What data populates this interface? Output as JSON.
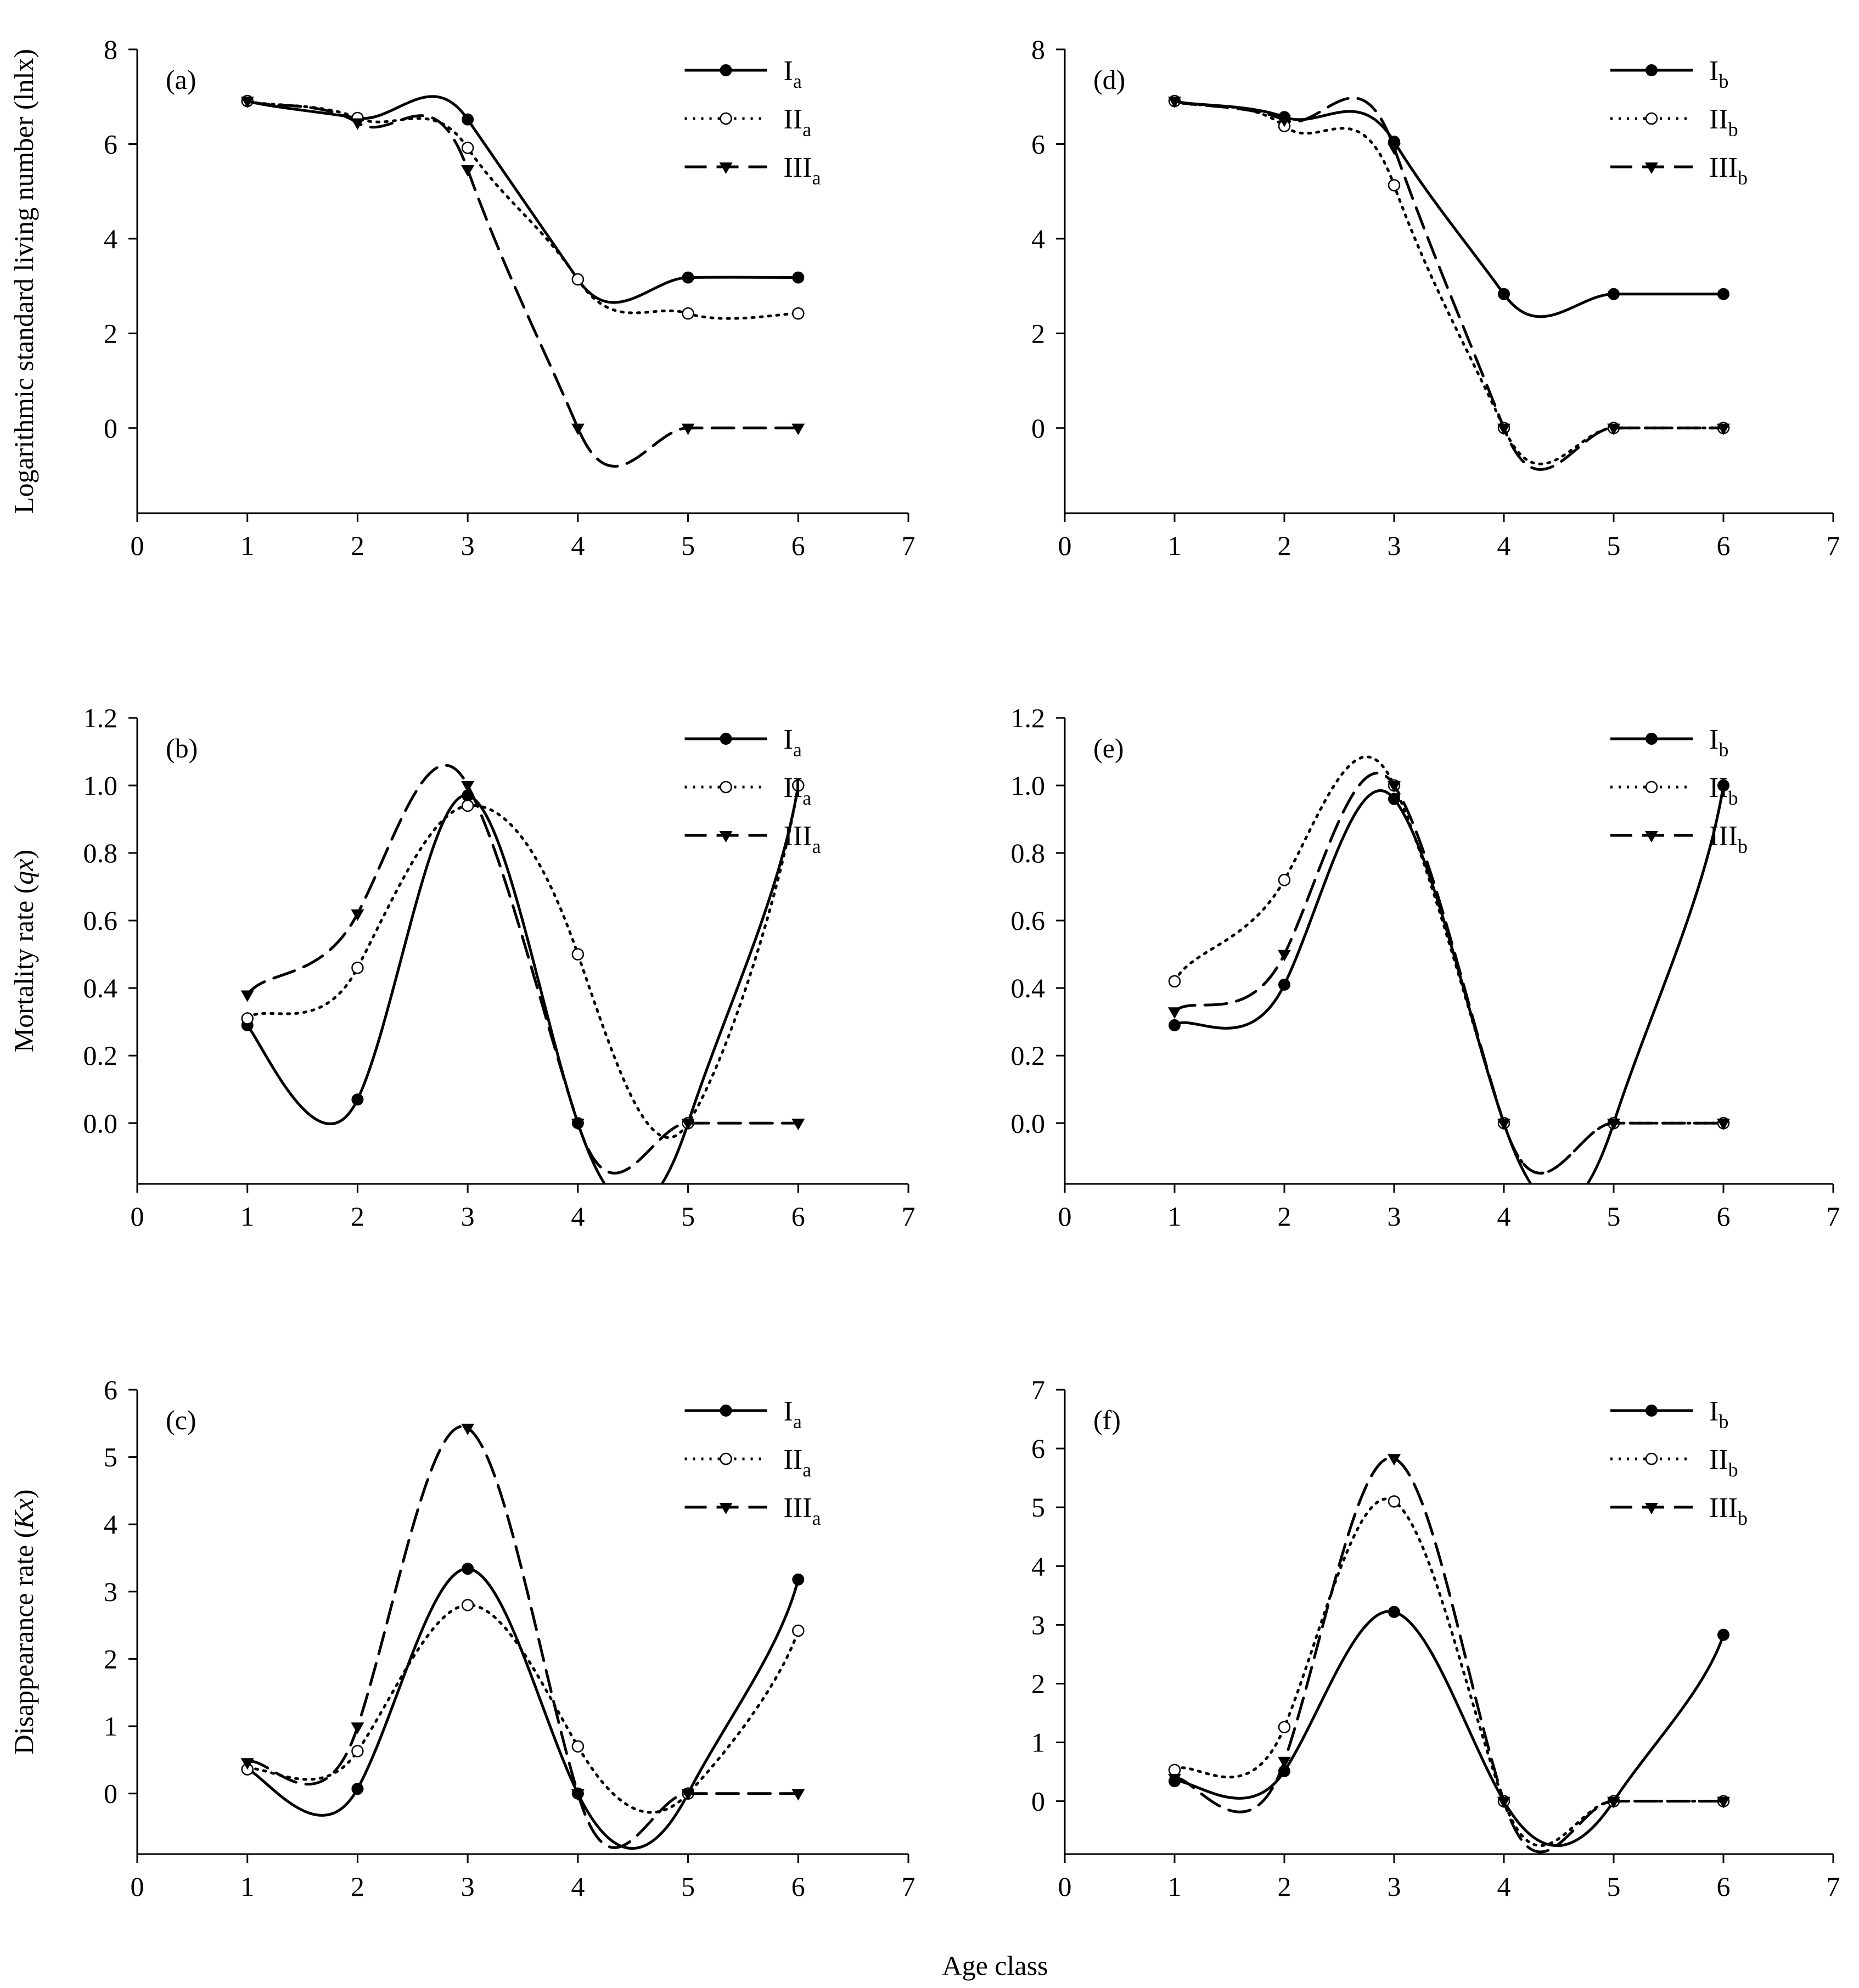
{
  "figure": {
    "xlabel": "Age class"
  },
  "chart_data": [
    {
      "panel": "(a)",
      "type": "line",
      "ylabel": "Logarithmic standard living number (lnlx)",
      "xlabel": "",
      "xlim": [
        0,
        7
      ],
      "ylim": [
        -1.8,
        8
      ],
      "xticks": [
        0,
        1,
        2,
        3,
        4,
        5,
        6,
        7
      ],
      "yticks": [
        0,
        2,
        4,
        6,
        8
      ],
      "ytick_labels": [
        "0",
        "2",
        "4",
        "6",
        "8"
      ],
      "legend_position": "top-right",
      "x": [
        1,
        2,
        3,
        4,
        5,
        6
      ],
      "series": [
        {
          "name": "I",
          "sub": "a",
          "style": "solid",
          "marker": "filled-circle",
          "values": [
            6.91,
            6.55,
            6.52,
            3.14,
            3.18,
            3.18
          ]
        },
        {
          "name": "II",
          "sub": "a",
          "style": "dotted",
          "marker": "open-circle",
          "values": [
            6.91,
            6.55,
            5.92,
            3.14,
            2.42,
            2.42
          ]
        },
        {
          "name": "III",
          "sub": "a",
          "style": "dashed",
          "marker": "triangle-down",
          "values": [
            6.91,
            6.45,
            5.46,
            0.0,
            0.0,
            0.0
          ]
        }
      ]
    },
    {
      "panel": "(b)",
      "type": "line",
      "ylabel": "Mortality rate (qx)",
      "xlabel": "",
      "xlim": [
        0,
        7
      ],
      "ylim": [
        -0.18,
        1.2
      ],
      "xticks": [
        0,
        1,
        2,
        3,
        4,
        5,
        6,
        7
      ],
      "yticks": [
        0.0,
        0.2,
        0.4,
        0.6,
        0.8,
        1.0,
        1.2
      ],
      "ytick_labels": [
        "0.0",
        "0.2",
        "0.4",
        "0.6",
        "0.8",
        "1.0",
        "1.2"
      ],
      "legend_position": "top-right",
      "x": [
        1,
        2,
        3,
        4,
        5,
        6
      ],
      "series": [
        {
          "name": "I",
          "sub": "a",
          "style": "solid",
          "marker": "filled-circle",
          "values": [
            0.29,
            0.07,
            0.97,
            0.0,
            0.0,
            1.0
          ]
        },
        {
          "name": "II",
          "sub": "a",
          "style": "dotted",
          "marker": "open-circle",
          "values": [
            0.31,
            0.46,
            0.94,
            0.5,
            0.0,
            1.0
          ]
        },
        {
          "name": "III",
          "sub": "a",
          "style": "dashed",
          "marker": "triangle-down",
          "values": [
            0.38,
            0.62,
            1.0,
            0.0,
            0.0,
            0.0
          ]
        }
      ]
    },
    {
      "panel": "(c)",
      "type": "line",
      "ylabel": "Disappearance rate (Kx)",
      "xlabel": "",
      "xlim": [
        0,
        7
      ],
      "ylim": [
        -0.9,
        6
      ],
      "xticks": [
        0,
        1,
        2,
        3,
        4,
        5,
        6,
        7
      ],
      "yticks": [
        0,
        1,
        2,
        3,
        4,
        5,
        6
      ],
      "ytick_labels": [
        "0",
        "1",
        "2",
        "3",
        "4",
        "5",
        "6"
      ],
      "legend_position": "top-right",
      "x": [
        1,
        2,
        3,
        4,
        5,
        6
      ],
      "series": [
        {
          "name": "I",
          "sub": "a",
          "style": "solid",
          "marker": "filled-circle",
          "values": [
            0.36,
            0.07,
            3.34,
            0.0,
            0.0,
            3.18
          ]
        },
        {
          "name": "II",
          "sub": "a",
          "style": "dotted",
          "marker": "open-circle",
          "values": [
            0.36,
            0.63,
            2.8,
            0.7,
            0.0,
            2.42
          ]
        },
        {
          "name": "III",
          "sub": "a",
          "style": "dashed",
          "marker": "triangle-down",
          "values": [
            0.46,
            0.99,
            5.43,
            0.0,
            0.0,
            0.0
          ]
        }
      ]
    },
    {
      "panel": "(d)",
      "type": "line",
      "ylabel": "",
      "xlabel": "",
      "xlim": [
        0,
        7
      ],
      "ylim": [
        -1.8,
        8
      ],
      "xticks": [
        0,
        1,
        2,
        3,
        4,
        5,
        6,
        7
      ],
      "yticks": [
        0,
        2,
        4,
        6,
        8
      ],
      "ytick_labels": [
        "0",
        "2",
        "4",
        "6",
        "8"
      ],
      "legend_position": "top-right",
      "x": [
        1,
        2,
        3,
        4,
        5,
        6
      ],
      "series": [
        {
          "name": "I",
          "sub": "b",
          "style": "solid",
          "marker": "filled-circle",
          "values": [
            6.91,
            6.57,
            6.05,
            2.83,
            2.83,
            2.83
          ]
        },
        {
          "name": "II",
          "sub": "b",
          "style": "dotted",
          "marker": "open-circle",
          "values": [
            6.91,
            6.38,
            5.13,
            0.0,
            0.0,
            0.0
          ]
        },
        {
          "name": "III",
          "sub": "b",
          "style": "dashed",
          "marker": "triangle-down",
          "values": [
            6.91,
            6.51,
            5.92,
            0.0,
            0.0,
            0.0
          ]
        }
      ]
    },
    {
      "panel": "(e)",
      "type": "line",
      "ylabel": "",
      "xlabel": "",
      "xlim": [
        0,
        7
      ],
      "ylim": [
        -0.18,
        1.2
      ],
      "xticks": [
        0,
        1,
        2,
        3,
        4,
        5,
        6,
        7
      ],
      "yticks": [
        0.0,
        0.2,
        0.4,
        0.6,
        0.8,
        1.0,
        1.2
      ],
      "ytick_labels": [
        "0.0",
        "0.2",
        "0.4",
        "0.6",
        "0.8",
        "1.0",
        "1.2"
      ],
      "legend_position": "top-right",
      "x": [
        1,
        2,
        3,
        4,
        5,
        6
      ],
      "series": [
        {
          "name": "I",
          "sub": "b",
          "style": "solid",
          "marker": "filled-circle",
          "values": [
            0.29,
            0.41,
            0.96,
            0.0,
            0.0,
            1.0
          ]
        },
        {
          "name": "II",
          "sub": "b",
          "style": "dotted",
          "marker": "open-circle",
          "values": [
            0.42,
            0.72,
            1.0,
            0.0,
            0.0,
            0.0
          ]
        },
        {
          "name": "III",
          "sub": "b",
          "style": "dashed",
          "marker": "triangle-down",
          "values": [
            0.33,
            0.5,
            1.0,
            0.0,
            0.0,
            0.0
          ]
        }
      ]
    },
    {
      "panel": "(f)",
      "type": "line",
      "ylabel": "",
      "xlabel": "",
      "xlim": [
        0,
        7
      ],
      "ylim": [
        -0.9,
        7
      ],
      "xticks": [
        0,
        1,
        2,
        3,
        4,
        5,
        6,
        7
      ],
      "yticks": [
        0,
        1,
        2,
        3,
        4,
        5,
        6,
        7
      ],
      "ytick_labels": [
        "0",
        "1",
        "2",
        "3",
        "4",
        "5",
        "6",
        "7"
      ],
      "legend_position": "top-right",
      "x": [
        1,
        2,
        3,
        4,
        5,
        6
      ],
      "series": [
        {
          "name": "I",
          "sub": "b",
          "style": "solid",
          "marker": "filled-circle",
          "values": [
            0.34,
            0.51,
            3.22,
            0.0,
            0.0,
            2.83
          ]
        },
        {
          "name": "II",
          "sub": "b",
          "style": "dotted",
          "marker": "open-circle",
          "values": [
            0.53,
            1.26,
            5.1,
            0.0,
            0.0,
            0.0
          ]
        },
        {
          "name": "III",
          "sub": "b",
          "style": "dashed",
          "marker": "triangle-down",
          "values": [
            0.39,
            0.68,
            5.83,
            0.0,
            0.0,
            0.0
          ]
        }
      ]
    }
  ]
}
